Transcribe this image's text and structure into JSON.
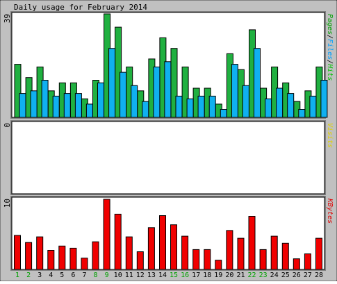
{
  "chart_data": {
    "type": "bar",
    "title": "Daily usage for February 2014",
    "categories": [
      "1",
      "2",
      "3",
      "4",
      "5",
      "6",
      "7",
      "8",
      "9",
      "10",
      "11",
      "12",
      "13",
      "14",
      "15",
      "16",
      "17",
      "18",
      "19",
      "20",
      "21",
      "22",
      "23",
      "24",
      "25",
      "26",
      "27",
      "28"
    ],
    "weekend_days": [
      "1",
      "2",
      "8",
      "9",
      "15",
      "16",
      "22",
      "23"
    ],
    "panels": [
      {
        "id": "top",
        "ymax_label": "39",
        "ylim": [
          0,
          39
        ],
        "ylabel_parts": [
          {
            "text": "Pages",
            "color": "#00a000"
          },
          {
            "text": "/",
            "color": "#000000"
          },
          {
            "text": "Files",
            "color": "#00a0ff"
          },
          {
            "text": "/",
            "color": "#000000"
          },
          {
            "text": "Hits",
            "color": "#00c000"
          }
        ],
        "series": [
          {
            "color": "#20b040",
            "values": [
              20,
              15,
              19,
              10,
              13,
              13,
              7,
              14,
              39,
              34,
              19,
              10,
              22,
              30,
              26,
              19,
              11,
              11,
              5,
              24,
              18,
              33,
              11,
              19,
              13,
              6,
              10,
              19
            ]
          },
          {
            "color": "#10b0f0",
            "values": [
              9,
              10,
              14,
              8,
              9,
              9,
              5,
              13,
              26,
              17,
              12,
              6,
              19,
              21,
              8,
              7,
              8,
              8,
              3,
              20,
              12,
              26,
              7,
              11,
              9,
              3,
              8,
              14
            ]
          }
        ]
      },
      {
        "id": "middle",
        "ymax_label": "0",
        "ylabel_parts": [
          {
            "text": "Visits",
            "color": "#e0d000"
          }
        ],
        "series": []
      },
      {
        "id": "bottom",
        "ymax_label": "10",
        "ylim": [
          0,
          10
        ],
        "ylabel_parts": [
          {
            "text": "KBytes",
            "color": "#e00000"
          }
        ],
        "series": [
          {
            "color": "#f00000",
            "values": [
              4.8,
              3.8,
              4.6,
              2.7,
              3.3,
              3.0,
              1.6,
              3.9,
              9.9,
              7.8,
              4.6,
              2.5,
              5.9,
              7.6,
              6.3,
              4.7,
              2.8,
              2.8,
              1.3,
              5.5,
              4.4,
              7.5,
              2.8,
              4.7,
              3.7,
              1.5,
              2.2,
              4.4
            ]
          }
        ]
      }
    ],
    "colors": {
      "background": "#c0c0c0",
      "plot_bg": "#ffffff",
      "weekday_label": "#000000",
      "weekend_label": "#00a000"
    }
  }
}
